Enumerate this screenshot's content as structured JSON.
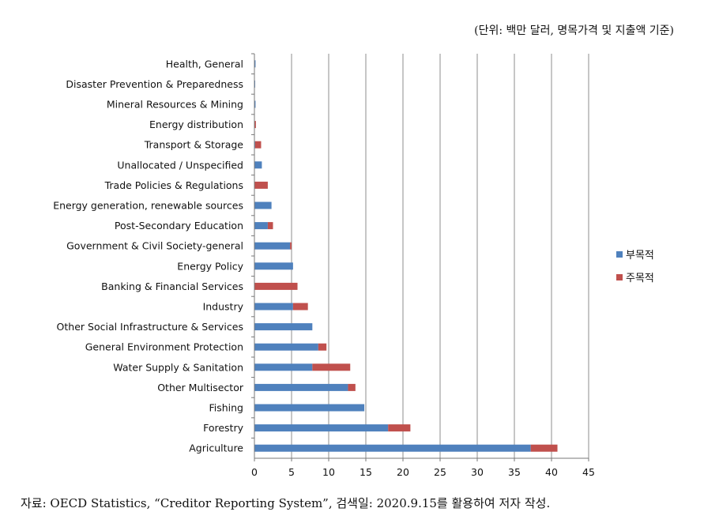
{
  "unit_note": "(단위: 백만 달러, 명목가격 및 지출액 기준)",
  "source_note": "자료: OECD Statistics, “Creditor Reporting System”, 검색일: 2020.9.15를 활용하여 저자 작성.",
  "colors": {
    "series1": "#4f81bd",
    "series2": "#c0504d",
    "grid": "#8c8c8c"
  },
  "chart_data": {
    "type": "bar",
    "orientation": "horizontal",
    "stacked": true,
    "categories": [
      "Health, General",
      "Disaster Prevention & Preparedness",
      "Mineral Resources & Mining",
      "Energy distribution",
      "Transport & Storage",
      "Unallocated / Unspecified",
      "Trade Policies & Regulations",
      "Energy generation, renewable sources",
      "Post-Secondary Education",
      "Government & Civil Society-general",
      "Energy Policy",
      "Banking & Financial Services",
      "Industry",
      "Other Social Infrastructure & Services",
      "General Environment Protection",
      "Water Supply & Sanitation",
      "Other Multisector",
      "Fishing",
      "Forestry",
      "Agriculture"
    ],
    "series": [
      {
        "name": "부목적",
        "values": [
          0.15,
          0.1,
          0.15,
          0,
          0.1,
          1.0,
          0,
          2.3,
          1.8,
          4.8,
          5.2,
          0,
          5.2,
          7.8,
          8.6,
          7.8,
          12.6,
          14.8,
          18.0,
          37.2
        ]
      },
      {
        "name": "주목적",
        "values": [
          0,
          0,
          0,
          0.2,
          0.8,
          0,
          1.8,
          0,
          0.7,
          0.2,
          0,
          5.8,
          2.0,
          0,
          1.1,
          5.1,
          1.0,
          0,
          3.0,
          3.6
        ]
      }
    ],
    "xlim": [
      0,
      45
    ],
    "xticks": [
      0,
      5,
      10,
      15,
      20,
      25,
      30,
      35,
      40,
      45
    ],
    "xlabel": "",
    "ylabel": "",
    "grid": "vertical",
    "legend_position": "right"
  }
}
